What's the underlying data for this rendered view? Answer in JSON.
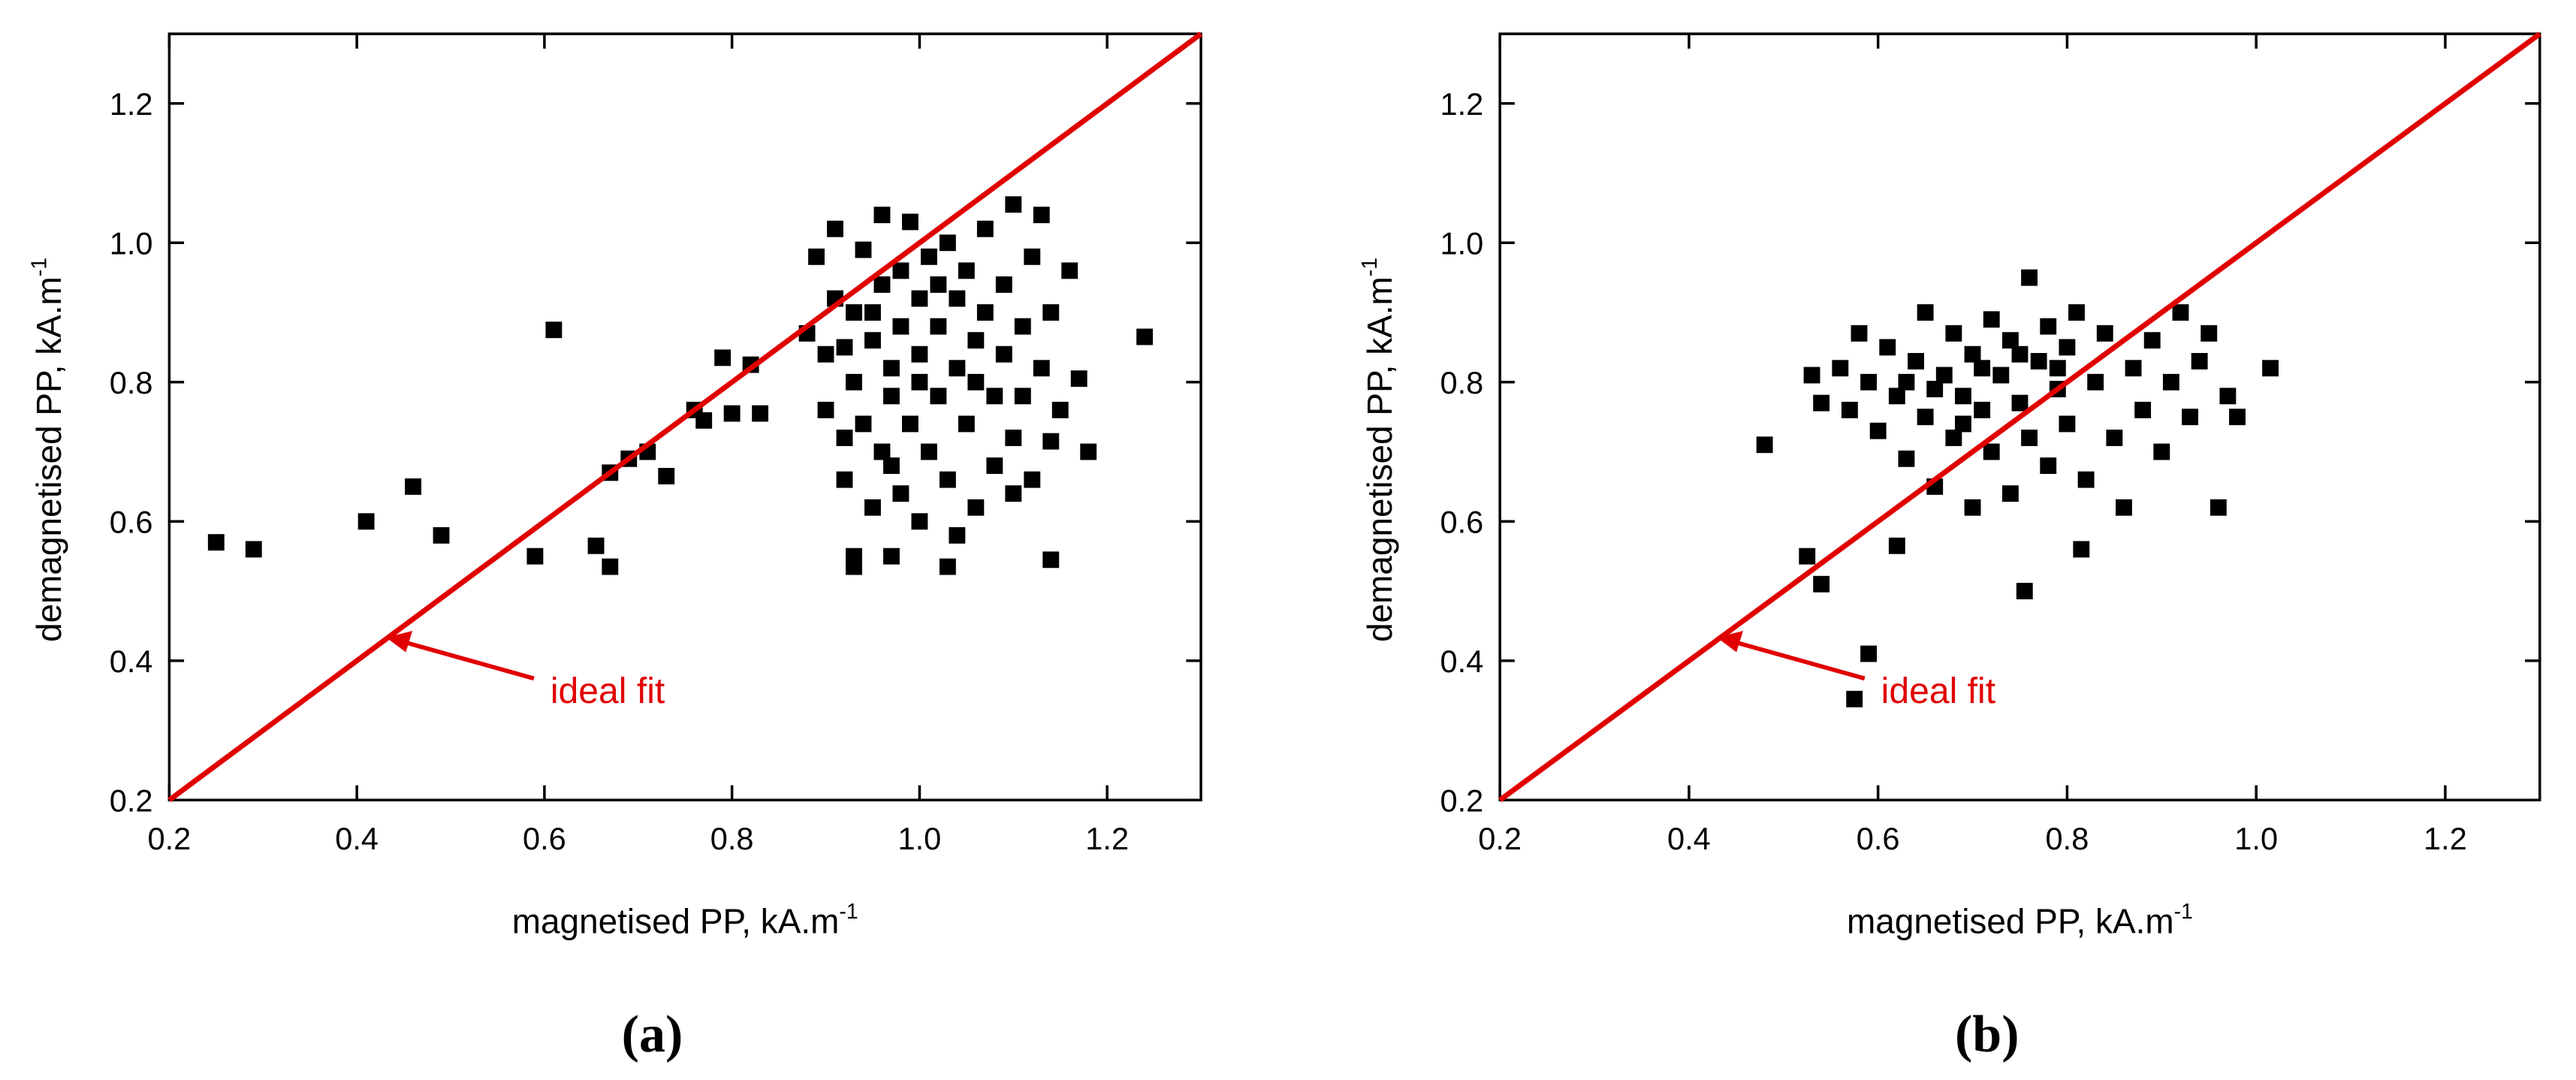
{
  "chart_data": [
    {
      "type": "scatter",
      "panel": "(a)",
      "x_label": "magnetised PP, kA.m",
      "x_label_sup": "-1",
      "y_label": "demagnetised PP, kA.m",
      "y_label_sup": "-1",
      "annotation": "ideal fit",
      "xlim": [
        0.2,
        1.3
      ],
      "ylim": [
        0.2,
        1.3
      ],
      "xticks": [
        0.2,
        0.4,
        0.6,
        0.8,
        {
          "value": 1,
          "label": "1.0"
        },
        1.2
      ],
      "yticks": [
        0.2,
        0.4,
        0.6,
        0.8,
        {
          "value": 1,
          "label": "1.0"
        },
        1.2
      ],
      "color": "#000000",
      "reference_line": {
        "x": [
          0.2,
          1.3
        ],
        "y": [
          0.2,
          1.3
        ],
        "color": "#e00000"
      },
      "x": [
        0.25,
        0.29,
        0.41,
        0.46,
        0.49,
        0.59,
        0.61,
        0.655,
        0.67,
        0.67,
        0.69,
        0.71,
        0.73,
        0.76,
        0.77,
        0.79,
        0.8,
        0.82,
        0.83,
        1.24,
        1.18,
        1.17,
        1.16,
        1.14,
        1.14,
        1.13,
        1.1,
        1.1,
        0.93,
        0.93,
        1.03,
        0.97,
        0.88,
        0.89,
        0.9,
        0.9,
        0.91,
        0.91,
        0.92,
        0.92,
        0.93,
        0.93,
        0.94,
        0.94,
        0.95,
        0.95,
        0.96,
        0.96,
        0.96,
        0.97,
        0.97,
        0.98,
        0.98,
        0.98,
        0.99,
        0.99,
        1.0,
        1.0,
        1.0,
        1.01,
        1.01,
        1.02,
        1.02,
        1.03,
        1.03,
        1.04,
        1.04,
        1.04,
        1.05,
        1.05,
        1.06,
        1.06,
        1.07,
        1.07,
        1.08,
        1.08,
        1.09,
        1.09,
        1.1,
        1.11,
        1.11,
        1.12,
        1.12,
        1.13,
        1.14,
        1.15,
        0.95,
        1.0,
        1.02,
        0.97,
        1.06,
        0.92
      ],
      "y": [
        0.57,
        0.56,
        0.6,
        0.65,
        0.58,
        0.55,
        0.875,
        0.565,
        0.535,
        0.67,
        0.69,
        0.7,
        0.665,
        0.76,
        0.745,
        0.835,
        0.755,
        0.825,
        0.755,
        0.865,
        0.7,
        0.805,
        0.96,
        0.545,
        0.715,
        1.04,
        1.055,
        0.64,
        0.55,
        0.535,
        0.535,
        0.55,
        0.87,
        0.98,
        0.84,
        0.76,
        0.92,
        1.02,
        0.72,
        0.66,
        0.8,
        0.9,
        0.99,
        0.74,
        0.86,
        0.62,
        1.04,
        0.94,
        0.7,
        0.82,
        0.78,
        0.96,
        0.88,
        0.64,
        1.03,
        0.74,
        0.92,
        0.84,
        0.6,
        0.98,
        0.7,
        0.88,
        0.78,
        1.0,
        0.66,
        0.92,
        0.82,
        0.58,
        0.96,
        0.74,
        0.86,
        0.62,
        1.02,
        0.9,
        0.78,
        0.68,
        0.94,
        0.84,
        0.72,
        0.88,
        0.78,
        0.98,
        0.66,
        0.82,
        0.9,
        0.76,
        0.9,
        0.8,
        0.94,
        0.68,
        0.8,
        0.85
      ]
    },
    {
      "type": "scatter",
      "panel": "(b)",
      "x_label": "magnetised PP, kA.m",
      "x_label_sup": "-1",
      "y_label": "demagnetised PP, kA.m",
      "y_label_sup": "-1",
      "annotation": "ideal fit",
      "xlim": [
        0.2,
        1.3
      ],
      "ylim": [
        0.2,
        1.3
      ],
      "xticks": [
        0.2,
        0.4,
        0.6,
        0.8,
        {
          "value": 1,
          "label": "1.0"
        },
        1.2
      ],
      "yticks": [
        0.2,
        0.4,
        0.6,
        0.8,
        {
          "value": 1,
          "label": "1.0"
        },
        1.2
      ],
      "color": "#000000",
      "reference_line": {
        "x": [
          0.2,
          1.3
        ],
        "y": [
          0.2,
          1.3
        ],
        "color": "#e00000"
      },
      "x": [
        0.48,
        0.525,
        0.54,
        0.575,
        0.59,
        0.62,
        0.755,
        0.815,
        0.96,
        1.015,
        0.53,
        0.54,
        0.56,
        0.57,
        0.58,
        0.59,
        0.6,
        0.61,
        0.62,
        0.63,
        0.64,
        0.65,
        0.65,
        0.66,
        0.67,
        0.68,
        0.68,
        0.69,
        0.7,
        0.7,
        0.71,
        0.72,
        0.72,
        0.73,
        0.74,
        0.74,
        0.75,
        0.76,
        0.76,
        0.77,
        0.78,
        0.78,
        0.79,
        0.8,
        0.8,
        0.81,
        0.82,
        0.83,
        0.84,
        0.85,
        0.86,
        0.87,
        0.88,
        0.89,
        0.9,
        0.91,
        0.92,
        0.93,
        0.94,
        0.95,
        0.97,
        0.98,
        0.66,
        0.71,
        0.75,
        0.79,
        0.69,
        0.63
      ],
      "y": [
        0.71,
        0.55,
        0.51,
        0.345,
        0.41,
        0.565,
        0.5,
        0.56,
        0.62,
        0.82,
        0.81,
        0.77,
        0.82,
        0.76,
        0.87,
        0.8,
        0.73,
        0.85,
        0.78,
        0.69,
        0.83,
        0.9,
        0.75,
        0.65,
        0.81,
        0.87,
        0.72,
        0.78,
        0.84,
        0.62,
        0.76,
        0.89,
        0.7,
        0.81,
        0.64,
        0.86,
        0.77,
        0.95,
        0.72,
        0.83,
        0.88,
        0.68,
        0.79,
        0.85,
        0.74,
        0.9,
        0.66,
        0.8,
        0.87,
        0.72,
        0.62,
        0.82,
        0.76,
        0.86,
        0.7,
        0.8,
        0.9,
        0.75,
        0.83,
        0.87,
        0.78,
        0.75,
        0.79,
        0.82,
        0.84,
        0.82,
        0.74,
        0.8
      ]
    }
  ]
}
